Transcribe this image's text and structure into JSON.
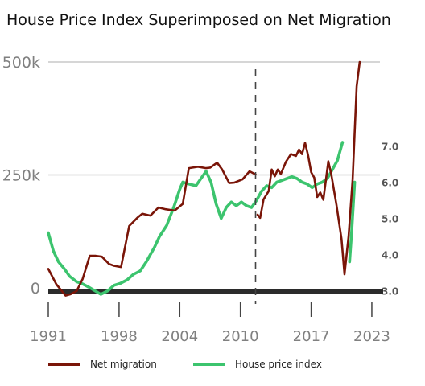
{
  "chart_data": {
    "type": "line",
    "title": "House Price Index Superimposed on Net Migration",
    "xlabel": "",
    "ylabel": "",
    "colors": {
      "migration": "#7a1508",
      "hpi": "#3cc46e",
      "grid": "#c8c8c8",
      "zero_line": "#2b2b2b",
      "axis_text": "#808080",
      "right_axis_text": "#555555",
      "divider": "#444444"
    },
    "x_ticks": [
      "1991",
      "1998",
      "2004",
      "2010",
      "2017",
      "2023"
    ],
    "x_tick_values": [
      1991,
      1998,
      2004,
      2010,
      2017,
      2023
    ],
    "xlim": [
      1991,
      2023.8
    ],
    "left_axis": {
      "ticks": [
        "500k",
        "250k",
        "0"
      ],
      "tick_values": [
        500000,
        250000,
        0
      ],
      "ylim": [
        -10000,
        510000
      ]
    },
    "right_axis": {
      "ticks": [
        "7.0",
        "6.0",
        "5.0",
        "4.0",
        "3.0"
      ],
      "tick_values": [
        7.0,
        6.0,
        5.0,
        4.0,
        3.0
      ],
      "ylim": [
        2.6,
        7.6
      ]
    },
    "grid": {
      "horizontal": true,
      "values": [
        500000,
        250000
      ]
    },
    "divider_year": 2011.5,
    "legend_position": "bottom",
    "series": [
      {
        "name": "Net migration",
        "axis": "left",
        "segments": [
          {
            "x": [
              1991,
              1991.8,
              1992.7,
              1993.2,
              1993.8,
              1994.4,
              1995.1,
              1995.7,
              1996.3,
              1997.0,
              1997.5,
              1998.2,
              1999.0,
              1999.8,
              2000.3,
              2001.1,
              2001.9,
              2002.6,
              2003.5,
              2004.3,
              2004.9,
              2005.8,
              2006.6,
              2007.0,
              2007.7,
              2008.2,
              2008.9,
              2009.4,
              2010.2,
              2010.9,
              2011.5
            ],
            "y": [
              42000,
              8000,
              -17000,
              -14000,
              -7000,
              20000,
              71000,
              71000,
              69000,
              53000,
              49000,
              46000,
              137000,
              155000,
              164000,
              160000,
              178000,
              174000,
              171000,
              186000,
              265000,
              268000,
              265000,
              266000,
              277000,
              262000,
              232000,
              233000,
              240000,
              258000,
              251000
            ]
          },
          {
            "x": [
              2011.7,
              2011.95,
              2012.3,
              2012.8,
              2013.1,
              2013.4,
              2013.7,
              2014.0,
              2014.5,
              2015.0,
              2015.5,
              2015.8,
              2016.1,
              2016.4,
              2016.7,
              2017.0,
              2017.3,
              2017.6,
              2017.9,
              2018.2,
              2018.7,
              2019.0,
              2019.5,
              2020.0,
              2020.3,
              2020.7,
              2021.1,
              2021.5,
              2021.8
            ],
            "y": [
              162000,
              155000,
              196000,
              214000,
              262000,
              247000,
              262000,
              252000,
              279000,
              296000,
              292000,
              306000,
              296000,
              321000,
              293000,
              256000,
              244000,
              201000,
              211000,
              195000,
              280000,
              250000,
              184000,
              108000,
              30000,
              115000,
              240000,
              446000,
              500000
            ]
          }
        ]
      },
      {
        "name": "House price index",
        "axis": "right",
        "segments": [
          {
            "x": [
              1991,
              1991.5,
              1992.0,
              1992.6,
              1993.1,
              1993.8,
              1994.3,
              1995.0,
              1995.6,
              1996.2,
              1996.9,
              1997.5,
              1998.1,
              1998.8,
              1999.4,
              2000.1,
              2000.7,
              2001.5,
              2002.0,
              2002.7,
              2003.4,
              2004.0,
              2004.3,
              2004.9,
              2005.6,
              2006.1,
              2006.6,
              2007.1,
              2007.6,
              2008.1,
              2008.6,
              2009.1,
              2009.6,
              2010.1,
              2010.6,
              2011.1,
              2011.6,
              2012.1,
              2012.6,
              2013.1,
              2013.6,
              2014.1,
              2014.6,
              2015.1,
              2015.6,
              2016.1,
              2016.6,
              2017.1,
              2017.6,
              2018.1,
              2018.6,
              2019.1,
              2019.6,
              2020.1
            ],
            "y": [
              4.6,
              4.1,
              3.8,
              3.6,
              3.4,
              3.25,
              3.2,
              3.1,
              3.0,
              2.9,
              3.0,
              3.15,
              3.2,
              3.3,
              3.45,
              3.55,
              3.8,
              4.2,
              4.5,
              4.8,
              5.3,
              5.8,
              6.0,
              5.95,
              5.9,
              6.1,
              6.3,
              6.0,
              5.4,
              5.0,
              5.3,
              5.45,
              5.35,
              5.45,
              5.35,
              5.3,
              5.5,
              5.75,
              5.9,
              5.85,
              6.0,
              6.05,
              6.1,
              6.15,
              6.1,
              6.0,
              5.95,
              5.85,
              5.95,
              6.0,
              6.1,
              6.35,
              6.6,
              7.1
            ]
          },
          {
            "x": [
              2020.8,
              2021.0,
              2021.3
            ],
            "y": [
              3.8,
              4.6,
              6.0
            ]
          }
        ]
      }
    ]
  }
}
